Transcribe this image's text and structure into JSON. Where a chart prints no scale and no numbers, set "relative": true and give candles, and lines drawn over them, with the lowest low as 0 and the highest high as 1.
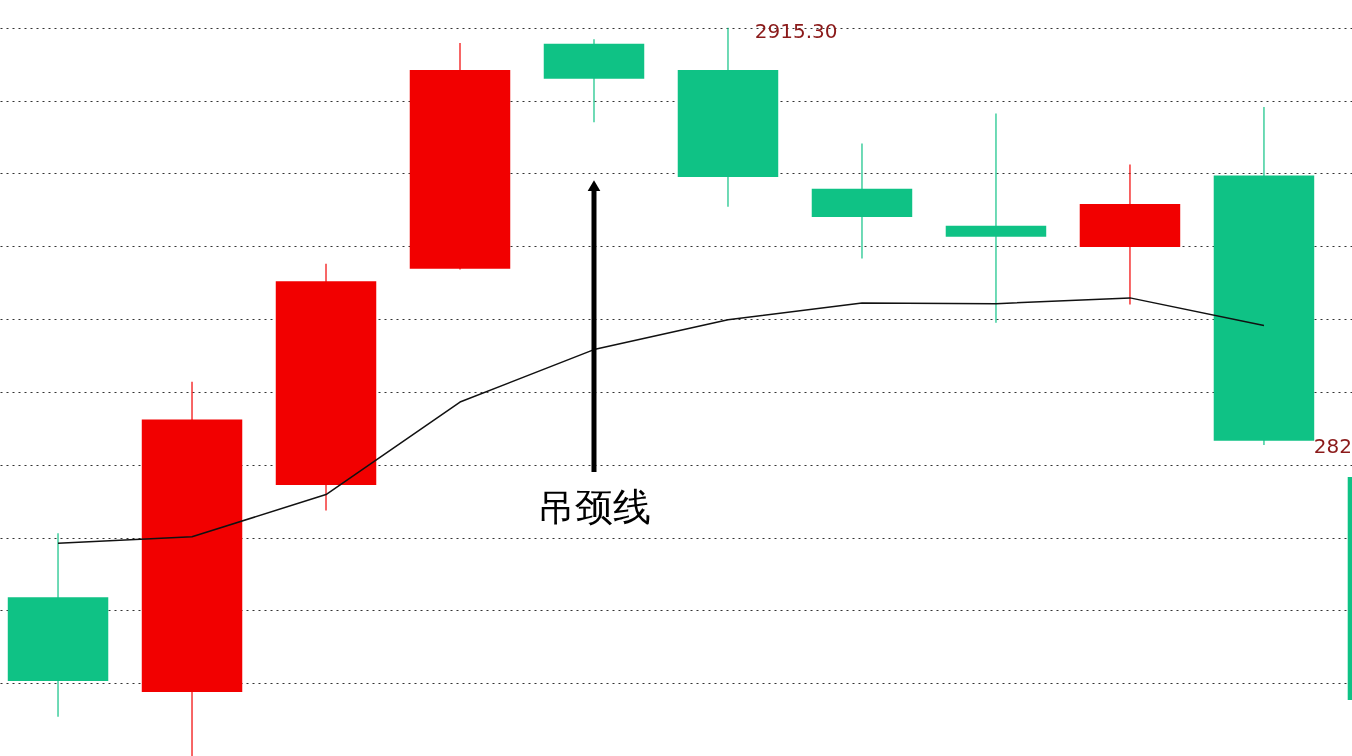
{
  "chart_data": {
    "type": "candlestick",
    "relative": true,
    "categories": [
      null,
      null,
      null,
      null,
      null,
      null,
      null,
      null,
      null,
      null,
      null
    ],
    "ohlc": [
      [
        0.218,
        0.306,
        0.054,
        0.103
      ],
      [
        0.088,
        0.514,
        0.0,
        0.462
      ],
      [
        0.372,
        0.676,
        0.337,
        0.652
      ],
      [
        0.669,
        0.979,
        0.668,
        0.942
      ],
      [
        0.978,
        0.984,
        0.87,
        0.93
      ],
      [
        0.942,
        1.0,
        0.754,
        0.795
      ],
      [
        0.779,
        0.841,
        0.683,
        0.74
      ],
      [
        0.728,
        0.882,
        0.595,
        0.713
      ],
      [
        0.699,
        0.812,
        0.62,
        0.758
      ],
      [
        0.797,
        0.891,
        0.427,
        0.433
      ],
      [
        0.383,
        0.383,
        0.077,
        0.077
      ]
    ],
    "colors": [
      "#0fc285",
      "#f20000",
      "#f20000",
      "#f20000",
      "#0fc285",
      "#0fc285",
      "#0fc285",
      "#0fc285",
      "#f20000",
      "#0fc285",
      "#0fc285"
    ],
    "series": [
      {
        "type": "line",
        "color": "#111111",
        "line_style": "solid",
        "values": [
          0.292,
          0.301,
          0.359,
          0.486,
          0.558,
          0.599,
          0.622,
          0.621,
          0.629,
          0.591,
          null
        ]
      }
    ],
    "grid": "y",
    "annotations": [
      "2915.30",
      "吊颈线",
      "282"
    ]
  }
}
